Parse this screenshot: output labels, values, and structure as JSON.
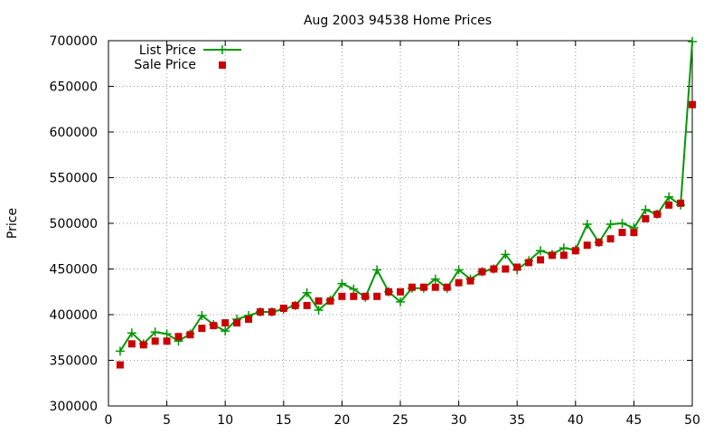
{
  "chart_data": {
    "type": "line",
    "title": "Aug 2003 94538 Home Prices",
    "xlabel": "",
    "ylabel": "Price",
    "xlim": [
      0,
      50
    ],
    "ylim": [
      300000,
      700000
    ],
    "xticks": [
      0,
      5,
      10,
      15,
      20,
      25,
      30,
      35,
      40,
      45,
      50
    ],
    "yticks": [
      300000,
      350000,
      400000,
      450000,
      500000,
      550000,
      600000,
      650000,
      700000
    ],
    "grid": true,
    "legend_position": "top-left",
    "x": [
      1,
      2,
      3,
      4,
      5,
      6,
      7,
      8,
      9,
      10,
      11,
      12,
      13,
      14,
      15,
      16,
      17,
      18,
      19,
      20,
      21,
      22,
      23,
      24,
      25,
      26,
      27,
      28,
      29,
      30,
      31,
      32,
      33,
      34,
      35,
      36,
      37,
      38,
      39,
      40,
      41,
      42,
      43,
      44,
      45,
      46,
      47,
      48,
      49,
      50
    ],
    "series": [
      {
        "name": "List Price",
        "style": "linespoints",
        "marker": "plus",
        "color": "#009900",
        "values": [
          360000,
          380000,
          368000,
          381000,
          379000,
          371000,
          379000,
          399000,
          389000,
          382000,
          395000,
          399000,
          403000,
          403000,
          406000,
          410000,
          424000,
          405000,
          416000,
          434000,
          428000,
          419000,
          449000,
          425000,
          414000,
          429000,
          429000,
          439000,
          429000,
          449000,
          439000,
          447000,
          450000,
          466000,
          449000,
          459000,
          470000,
          466000,
          473000,
          471000,
          499000,
          479000,
          499000,
          500000,
          495000,
          515000,
          510000,
          529000,
          520000,
          699000
        ]
      },
      {
        "name": "Sale Price",
        "style": "points",
        "marker": "square",
        "color": "#cc0000",
        "values": [
          345000,
          368000,
          367000,
          371000,
          371000,
          376000,
          378000,
          385000,
          388000,
          391000,
          391000,
          395000,
          403000,
          403000,
          407000,
          410000,
          410000,
          415000,
          415000,
          420000,
          420000,
          420000,
          420000,
          425000,
          425000,
          430000,
          430000,
          430000,
          430000,
          435000,
          437000,
          447000,
          450000,
          450000,
          452000,
          457000,
          460000,
          465000,
          465000,
          470000,
          476000,
          479000,
          483000,
          490000,
          490000,
          505000,
          510000,
          520000,
          522000,
          630000
        ]
      }
    ]
  }
}
